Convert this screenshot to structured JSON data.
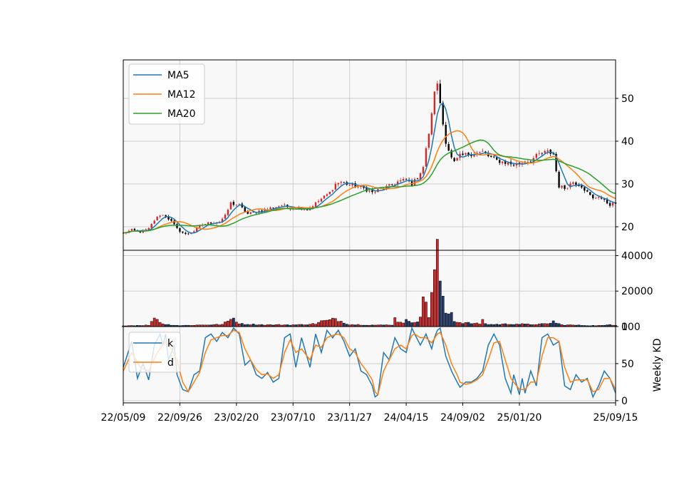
{
  "chart_data": [
    {
      "type": "candlestick",
      "name_hint": "price-panel",
      "x_ticks": [
        "22/05/09",
        "22/09/26",
        "23/02/20",
        "23/07/10",
        "23/11/27",
        "24/04/15",
        "24/09/02",
        "25/01/20",
        "25/09/15"
      ],
      "x_range_weeks": [
        0,
        174
      ],
      "y_ticks": [
        20,
        30,
        40,
        50
      ],
      "ylim": [
        14.5,
        59
      ],
      "grid": true,
      "legend": {
        "placement": "top-left",
        "entries": [
          "MA5",
          "MA12",
          "MA20"
        ]
      },
      "colors": {
        "MA5": "#1f77b4",
        "MA12": "#ff7f0e",
        "MA20": "#2ca02c",
        "up": "#d62728",
        "down": "#000000"
      },
      "close_anchors": [
        [
          0,
          18.5
        ],
        [
          3,
          19.2
        ],
        [
          6,
          18.8
        ],
        [
          9,
          19.5
        ],
        [
          11,
          21.5
        ],
        [
          13,
          22.8
        ],
        [
          15,
          22.6
        ],
        [
          17,
          21.2
        ],
        [
          19,
          19.5
        ],
        [
          22,
          18.2
        ],
        [
          25,
          19
        ],
        [
          28,
          20.5
        ],
        [
          31,
          21
        ],
        [
          34,
          21.2
        ],
        [
          36,
          22.5
        ],
        [
          38,
          25.5
        ],
        [
          41,
          25
        ],
        [
          44,
          23
        ],
        [
          47,
          23.5
        ],
        [
          50,
          24
        ],
        [
          53,
          24.5
        ],
        [
          56,
          25
        ],
        [
          59,
          24.5
        ],
        [
          62,
          24.5
        ],
        [
          65,
          24
        ],
        [
          67,
          25
        ],
        [
          70,
          26.5
        ],
        [
          73,
          28
        ],
        [
          75,
          30
        ],
        [
          77,
          30.5
        ],
        [
          79,
          30
        ],
        [
          82,
          29.5
        ],
        [
          85,
          29
        ],
        [
          88,
          28
        ],
        [
          91,
          28.8
        ],
        [
          94,
          29.5
        ],
        [
          97,
          30.5
        ],
        [
          100,
          31
        ],
        [
          102,
          30
        ],
        [
          104,
          31.5
        ],
        [
          106,
          34
        ],
        [
          107,
          38
        ],
        [
          108,
          42
        ],
        [
          109,
          46
        ],
        [
          110,
          52
        ],
        [
          111,
          53
        ],
        [
          112,
          49
        ],
        [
          113,
          44
        ],
        [
          114,
          40
        ],
        [
          115,
          38
        ],
        [
          116,
          36
        ],
        [
          117,
          35
        ],
        [
          119,
          36.5
        ],
        [
          122,
          37
        ],
        [
          125,
          37.2
        ],
        [
          127,
          37.5
        ],
        [
          129,
          36.5
        ],
        [
          132,
          35.5
        ],
        [
          135,
          35
        ],
        [
          138,
          34.5
        ],
        [
          141,
          35
        ],
        [
          144,
          35.5
        ],
        [
          147,
          37
        ],
        [
          150,
          37.5
        ],
        [
          152,
          37
        ],
        [
          153,
          33
        ],
        [
          154,
          29.5
        ],
        [
          156,
          29
        ],
        [
          159,
          30.5
        ],
        [
          162,
          29.5
        ],
        [
          164,
          28
        ],
        [
          166,
          26.5
        ],
        [
          168,
          27.2
        ],
        [
          170,
          26
        ],
        [
          172,
          25.2
        ],
        [
          174,
          25.5
        ]
      ]
    },
    {
      "type": "bar",
      "name_hint": "volume-panel",
      "x_range_weeks": [
        0,
        174
      ],
      "y_ticks": [
        0,
        20000,
        40000
      ],
      "ylim": [
        0,
        43000
      ],
      "grid": true,
      "colors": {
        "up": "#d62728",
        "down": "#1f3b6e",
        "edge": "#000000"
      },
      "volume_anchors": [
        [
          0,
          500
        ],
        [
          9,
          800
        ],
        [
          10,
          2500
        ],
        [
          11,
          6000
        ],
        [
          12,
          4000
        ],
        [
          13,
          2500
        ],
        [
          15,
          1200
        ],
        [
          20,
          600
        ],
        [
          35,
          1200
        ],
        [
          38,
          4000
        ],
        [
          39,
          6000
        ],
        [
          40,
          2500
        ],
        [
          42,
          1500
        ],
        [
          50,
          1000
        ],
        [
          62,
          1000
        ],
        [
          68,
          1600
        ],
        [
          70,
          3000
        ],
        [
          73,
          3500
        ],
        [
          75,
          4500
        ],
        [
          77,
          3000
        ],
        [
          80,
          1200
        ],
        [
          90,
          800
        ],
        [
          95,
          1000
        ],
        [
          96,
          4500
        ],
        [
          97,
          3000
        ],
        [
          99,
          2500
        ],
        [
          100,
          3500
        ],
        [
          101,
          2500
        ],
        [
          102,
          2500
        ],
        [
          103,
          3000
        ],
        [
          104,
          3500
        ],
        [
          105,
          6000
        ],
        [
          106,
          14000
        ],
        [
          107,
          14000
        ],
        [
          108,
          6000
        ],
        [
          109,
          20000
        ],
        [
          110,
          30000
        ],
        [
          111,
          42000
        ],
        [
          112,
          27000
        ],
        [
          113,
          14000
        ],
        [
          114,
          8000
        ],
        [
          115,
          7000
        ],
        [
          116,
          9000
        ],
        [
          117,
          3500
        ],
        [
          118,
          2500
        ],
        [
          122,
          2000
        ],
        [
          126,
          1500
        ],
        [
          127,
          4500
        ],
        [
          128,
          1500
        ],
        [
          130,
          1200
        ],
        [
          138,
          1500
        ],
        [
          144,
          1200
        ],
        [
          150,
          1500
        ],
        [
          152,
          3000
        ],
        [
          153,
          2000
        ],
        [
          155,
          1000
        ],
        [
          160,
          800
        ],
        [
          165,
          600
        ],
        [
          170,
          600
        ],
        [
          172,
          1200
        ],
        [
          174,
          800
        ]
      ]
    },
    {
      "type": "line",
      "name_hint": "kd-panel",
      "x_range_weeks": [
        0,
        174
      ],
      "y_ticks": [
        0,
        50,
        100
      ],
      "ylim": [
        -3,
        100
      ],
      "ylabel": "Weekly KD",
      "grid": true,
      "legend": {
        "placement": "top-left",
        "entries": [
          "k",
          "d"
        ]
      },
      "colors": {
        "k": "#1f77b4",
        "d": "#ff7f0e"
      },
      "k_anchors": [
        [
          0,
          45
        ],
        [
          3,
          80
        ],
        [
          5,
          30
        ],
        [
          7,
          50
        ],
        [
          9,
          28
        ],
        [
          11,
          75
        ],
        [
          13,
          90
        ],
        [
          14,
          75
        ],
        [
          15,
          90
        ],
        [
          16,
          55
        ],
        [
          18,
          75
        ],
        [
          19,
          35
        ],
        [
          21,
          15
        ],
        [
          23,
          12
        ],
        [
          25,
          35
        ],
        [
          27,
          40
        ],
        [
          29,
          85
        ],
        [
          31,
          90
        ],
        [
          33,
          80
        ],
        [
          35,
          92
        ],
        [
          37,
          85
        ],
        [
          39,
          98
        ],
        [
          41,
          90
        ],
        [
          43,
          48
        ],
        [
          45,
          55
        ],
        [
          47,
          35
        ],
        [
          49,
          30
        ],
        [
          51,
          38
        ],
        [
          53,
          25
        ],
        [
          55,
          30
        ],
        [
          57,
          85
        ],
        [
          59,
          90
        ],
        [
          61,
          45
        ],
        [
          63,
          85
        ],
        [
          66,
          45
        ],
        [
          68,
          90
        ],
        [
          70,
          65
        ],
        [
          72,
          95
        ],
        [
          74,
          85
        ],
        [
          76,
          95
        ],
        [
          78,
          80
        ],
        [
          80,
          60
        ],
        [
          82,
          70
        ],
        [
          84,
          40
        ],
        [
          86,
          35
        ],
        [
          88,
          20
        ],
        [
          89,
          5
        ],
        [
          90,
          8
        ],
        [
          92,
          65
        ],
        [
          94,
          55
        ],
        [
          96,
          85
        ],
        [
          98,
          70
        ],
        [
          100,
          65
        ],
        [
          102,
          98
        ],
        [
          103,
          90
        ],
        [
          105,
          75
        ],
        [
          107,
          90
        ],
        [
          109,
          70
        ],
        [
          110,
          85
        ],
        [
          111,
          95
        ],
        [
          112,
          98
        ],
        [
          114,
          60
        ],
        [
          116,
          40
        ],
        [
          118,
          25
        ],
        [
          119,
          18
        ],
        [
          121,
          25
        ],
        [
          123,
          25
        ],
        [
          125,
          30
        ],
        [
          127,
          40
        ],
        [
          129,
          75
        ],
        [
          131,
          90
        ],
        [
          133,
          75
        ],
        [
          135,
          30
        ],
        [
          137,
          10
        ],
        [
          138,
          35
        ],
        [
          140,
          8
        ],
        [
          141,
          30
        ],
        [
          142,
          10
        ],
        [
          144,
          40
        ],
        [
          146,
          20
        ],
        [
          148,
          85
        ],
        [
          150,
          90
        ],
        [
          152,
          75
        ],
        [
          154,
          80
        ],
        [
          156,
          20
        ],
        [
          158,
          15
        ],
        [
          160,
          35
        ],
        [
          162,
          25
        ],
        [
          164,
          30
        ],
        [
          166,
          5
        ],
        [
          168,
          20
        ],
        [
          170,
          40
        ],
        [
          172,
          30
        ],
        [
          174,
          10
        ]
      ],
      "d_anchors": [
        [
          0,
          40
        ],
        [
          3,
          65
        ],
        [
          6,
          45
        ],
        [
          9,
          40
        ],
        [
          12,
          65
        ],
        [
          15,
          80
        ],
        [
          17,
          70
        ],
        [
          19,
          55
        ],
        [
          21,
          25
        ],
        [
          23,
          12
        ],
        [
          25,
          25
        ],
        [
          27,
          38
        ],
        [
          29,
          65
        ],
        [
          31,
          82
        ],
        [
          33,
          85
        ],
        [
          35,
          88
        ],
        [
          37,
          88
        ],
        [
          39,
          95
        ],
        [
          41,
          92
        ],
        [
          43,
          70
        ],
        [
          45,
          55
        ],
        [
          47,
          42
        ],
        [
          49,
          35
        ],
        [
          51,
          36
        ],
        [
          53,
          30
        ],
        [
          55,
          35
        ],
        [
          57,
          65
        ],
        [
          59,
          82
        ],
        [
          61,
          65
        ],
        [
          63,
          70
        ],
        [
          66,
          55
        ],
        [
          68,
          75
        ],
        [
          70,
          72
        ],
        [
          72,
          85
        ],
        [
          74,
          88
        ],
        [
          76,
          90
        ],
        [
          78,
          85
        ],
        [
          80,
          70
        ],
        [
          82,
          65
        ],
        [
          84,
          50
        ],
        [
          86,
          40
        ],
        [
          88,
          28
        ],
        [
          89,
          12
        ],
        [
          90,
          8
        ],
        [
          92,
          40
        ],
        [
          94,
          55
        ],
        [
          96,
          70
        ],
        [
          98,
          75
        ],
        [
          100,
          70
        ],
        [
          102,
          88
        ],
        [
          103,
          90
        ],
        [
          105,
          85
        ],
        [
          107,
          85
        ],
        [
          109,
          78
        ],
        [
          111,
          90
        ],
        [
          112,
          92
        ],
        [
          114,
          75
        ],
        [
          116,
          50
        ],
        [
          118,
          35
        ],
        [
          119,
          25
        ],
        [
          121,
          22
        ],
        [
          123,
          24
        ],
        [
          125,
          28
        ],
        [
          127,
          35
        ],
        [
          129,
          55
        ],
        [
          131,
          78
        ],
        [
          133,
          80
        ],
        [
          135,
          55
        ],
        [
          137,
          30
        ],
        [
          138,
          25
        ],
        [
          140,
          15
        ],
        [
          142,
          15
        ],
        [
          144,
          25
        ],
        [
          146,
          25
        ],
        [
          148,
          60
        ],
        [
          150,
          85
        ],
        [
          152,
          85
        ],
        [
          154,
          80
        ],
        [
          156,
          45
        ],
        [
          158,
          25
        ],
        [
          160,
          28
        ],
        [
          162,
          28
        ],
        [
          164,
          28
        ],
        [
          166,
          12
        ],
        [
          168,
          15
        ],
        [
          170,
          30
        ],
        [
          172,
          30
        ],
        [
          174,
          15
        ]
      ]
    }
  ]
}
